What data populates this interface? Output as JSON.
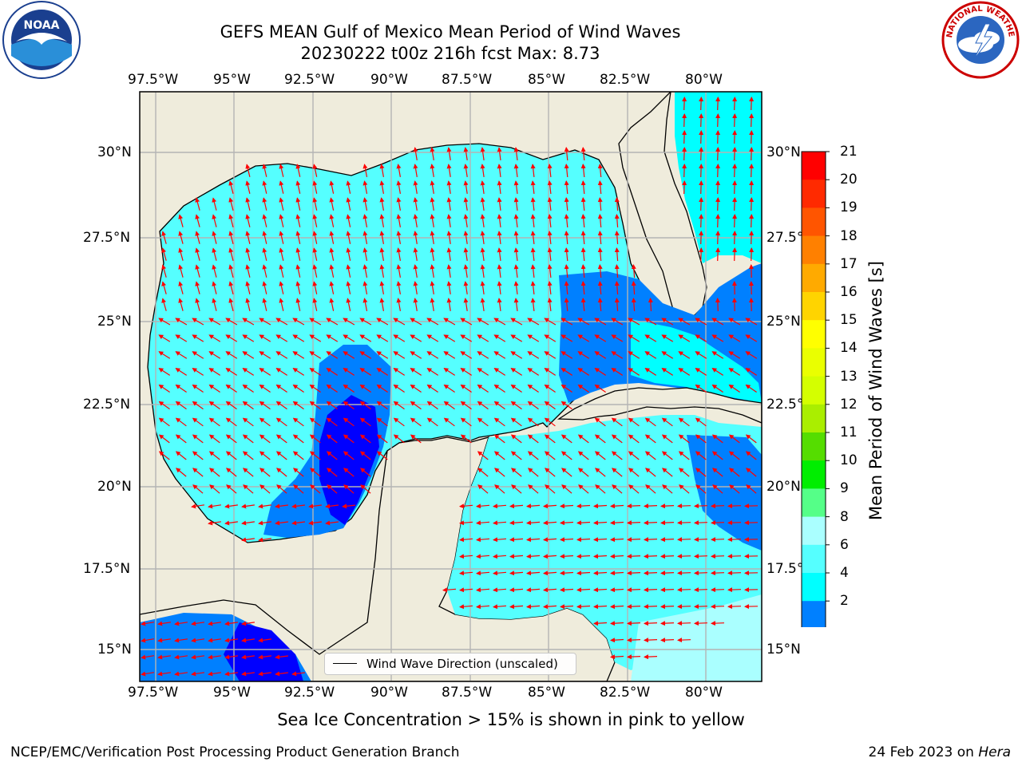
{
  "header": {
    "title_line1": "GEFS MEAN Gulf of Mexico Mean Period of Wind Waves",
    "title_line2": "20230222 t00z 216h fcst   Max: 8.73"
  },
  "map": {
    "lon_labels": [
      "97.5°W",
      "95°W",
      "92.5°W",
      "90°W",
      "87.5°W",
      "85°W",
      "82.5°W",
      "80°W"
    ],
    "lat_labels": [
      "30°N",
      "27.5°N",
      "25°N",
      "22.5°N",
      "20°N",
      "17.5°N",
      "15°N"
    ],
    "land_color": "#efecdc",
    "arrow_color": "#ff0000"
  },
  "legend": {
    "label": "Wind Wave Direction (unscaled)"
  },
  "colorbar": {
    "title": "Mean Period of Wind Waves [s]",
    "labels": [
      "21",
      "20",
      "19",
      "18",
      "17",
      "16",
      "15",
      "14",
      "13",
      "12",
      "11",
      "10",
      "9",
      "8",
      "6",
      "4",
      "2"
    ],
    "colors": [
      "#ff0000",
      "#ff2a00",
      "#ff5500",
      "#ff8000",
      "#ffaa00",
      "#ffd400",
      "#ffff00",
      "#eaff00",
      "#d4ff00",
      "#aaee00",
      "#55dd00",
      "#00ee00",
      "#55ff88",
      "#aaffff",
      "#55ffff",
      "#00ffff",
      "#0080ff"
    ],
    "under_color": "#0000ff"
  },
  "notes": {
    "sea_ice": "Sea Ice Concentration > 15% is shown in pink to yellow",
    "left_footer": "NCEP/EMC/Verification Post Processing Product Generation Branch",
    "right_footer_prefix": "24 Feb 2023 on ",
    "right_footer_machine": "Hera"
  },
  "logos": {
    "noaa": "NOAA",
    "nws": "NATIONAL WEATHER SERVICE"
  }
}
